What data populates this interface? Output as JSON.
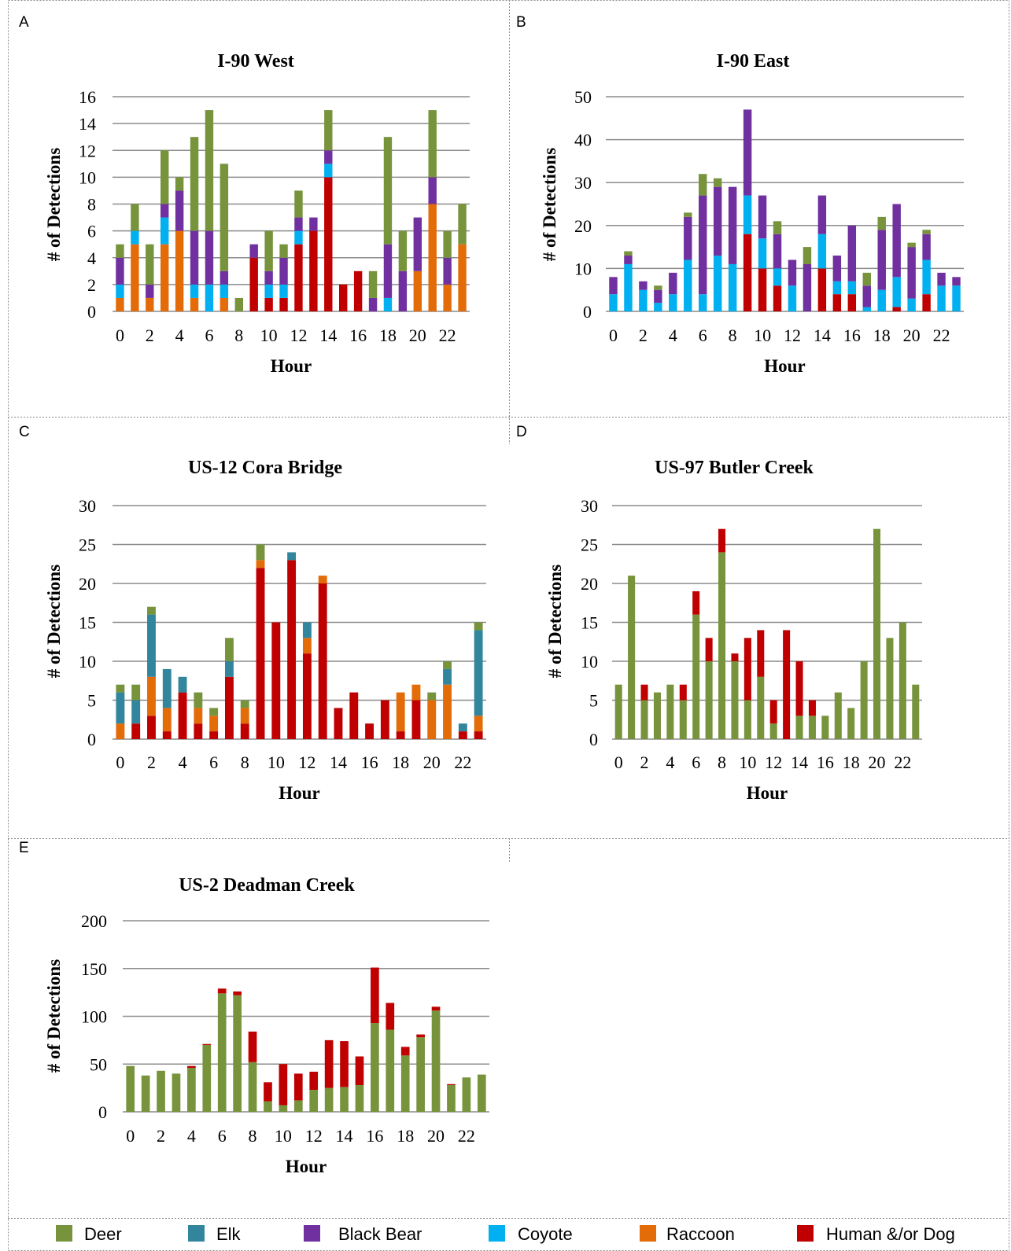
{
  "series_colors": {
    "Deer": "#77933C",
    "Elk": "#31859C",
    "Black Bear": "#7030A0",
    "Coyote": "#00B0F0",
    "Raccoon": "#E36C09",
    "Human &/or Dog": "#C00000"
  },
  "legend": {
    "items": [
      {
        "label": "Deer",
        "color": "#77933C"
      },
      {
        "label": "Elk",
        "color": "#31859C"
      },
      {
        "label": "Black Bear",
        "color": "#7030A0"
      },
      {
        "label": "Coyote",
        "color": "#00B0F0"
      },
      {
        "label": "Raccoon",
        "color": "#E36C09"
      },
      {
        "label": "Human &/or Dog",
        "color": "#C00000"
      }
    ]
  },
  "chart_data": [
    {
      "panel": "A",
      "type": "bar",
      "stacked": true,
      "title": "I-90 West",
      "xlabel": "Hour",
      "ylabel": "# of Detections",
      "ylim": [
        0,
        16
      ],
      "yticks": [
        0,
        2,
        4,
        6,
        8,
        10,
        12,
        14,
        16
      ],
      "xticks": [
        0,
        2,
        4,
        6,
        8,
        10,
        12,
        14,
        16,
        18,
        20,
        22
      ],
      "grid": true,
      "categories": [
        0,
        1,
        2,
        3,
        4,
        5,
        6,
        7,
        8,
        9,
        10,
        11,
        12,
        13,
        14,
        15,
        16,
        17,
        18,
        19,
        20,
        21,
        22,
        23
      ],
      "series": [
        {
          "name": "Human &/or Dog",
          "values": [
            0,
            0,
            0,
            0,
            0,
            0,
            0,
            0,
            0,
            4,
            1,
            1,
            5,
            6,
            10,
            2,
            3,
            0,
            0,
            0,
            0,
            0,
            0,
            0
          ]
        },
        {
          "name": "Raccoon",
          "values": [
            1,
            5,
            1,
            5,
            6,
            1,
            0,
            1,
            0,
            0,
            0,
            0,
            0,
            0,
            0,
            0,
            0,
            0,
            0,
            0,
            3,
            8,
            2,
            5
          ]
        },
        {
          "name": "Coyote",
          "values": [
            1,
            1,
            0,
            2,
            0,
            1,
            2,
            1,
            0,
            0,
            1,
            1,
            1,
            0,
            1,
            0,
            0,
            0,
            1,
            0,
            0,
            0,
            0,
            0
          ]
        },
        {
          "name": "Black Bear",
          "values": [
            2,
            0,
            1,
            1,
            3,
            4,
            4,
            1,
            0,
            1,
            1,
            2,
            1,
            1,
            1,
            0,
            0,
            1,
            4,
            3,
            4,
            2,
            2,
            0
          ]
        },
        {
          "name": "Deer",
          "values": [
            1,
            2,
            3,
            4,
            1,
            7,
            9,
            8,
            1,
            0,
            3,
            1,
            2,
            0,
            3,
            0,
            0,
            2,
            8,
            3,
            0,
            5,
            2,
            3
          ]
        }
      ]
    },
    {
      "panel": "B",
      "type": "bar",
      "stacked": true,
      "title": "I-90 East",
      "xlabel": "Hour",
      "ylabel": "# of Detections",
      "ylim": [
        0,
        50
      ],
      "yticks": [
        0,
        10,
        20,
        30,
        40,
        50
      ],
      "xticks": [
        0,
        2,
        4,
        6,
        8,
        10,
        12,
        14,
        16,
        18,
        20,
        22
      ],
      "grid": true,
      "categories": [
        0,
        1,
        2,
        3,
        4,
        5,
        6,
        7,
        8,
        9,
        10,
        11,
        12,
        13,
        14,
        15,
        16,
        17,
        18,
        19,
        20,
        21,
        22,
        23
      ],
      "series": [
        {
          "name": "Human &/or Dog",
          "values": [
            0,
            0,
            0,
            0,
            0,
            0,
            0,
            0,
            0,
            18,
            10,
            6,
            0,
            0,
            10,
            4,
            4,
            0,
            0,
            1,
            0,
            4,
            0,
            0
          ]
        },
        {
          "name": "Coyote",
          "values": [
            4,
            11,
            5,
            2,
            4,
            12,
            4,
            13,
            11,
            9,
            7,
            4,
            6,
            0,
            8,
            3,
            3,
            1,
            5,
            7,
            3,
            8,
            6,
            6
          ]
        },
        {
          "name": "Black Bear",
          "values": [
            4,
            2,
            2,
            3,
            5,
            10,
            23,
            16,
            18,
            20,
            10,
            8,
            6,
            11,
            9,
            6,
            13,
            5,
            14,
            17,
            12,
            6,
            3,
            2
          ]
        },
        {
          "name": "Deer",
          "values": [
            0,
            1,
            0,
            1,
            0,
            1,
            5,
            2,
            0,
            0,
            0,
            3,
            0,
            4,
            0,
            0,
            0,
            3,
            3,
            0,
            1,
            1,
            0,
            0
          ]
        }
      ]
    },
    {
      "panel": "C",
      "type": "bar",
      "stacked": true,
      "title": "US-12 Cora Bridge",
      "xlabel": "Hour",
      "ylabel": "# of Detections",
      "ylim": [
        0,
        30
      ],
      "yticks": [
        0,
        5,
        10,
        15,
        20,
        25,
        30
      ],
      "xticks": [
        0,
        2,
        4,
        6,
        8,
        10,
        12,
        14,
        16,
        18,
        20,
        22
      ],
      "grid": true,
      "categories": [
        0,
        1,
        2,
        3,
        4,
        5,
        6,
        7,
        8,
        9,
        10,
        11,
        12,
        13,
        14,
        15,
        16,
        17,
        18,
        19,
        20,
        21,
        22,
        23
      ],
      "series": [
        {
          "name": "Human &/or Dog",
          "values": [
            0,
            2,
            3,
            1,
            6,
            2,
            1,
            8,
            2,
            22,
            15,
            23,
            11,
            20,
            4,
            6,
            2,
            5,
            1,
            5,
            0,
            0,
            1,
            1
          ]
        },
        {
          "name": "Raccoon",
          "values": [
            2,
            0,
            5,
            3,
            0,
            2,
            2,
            0,
            2,
            1,
            0,
            0,
            2,
            1,
            0,
            0,
            0,
            0,
            5,
            2,
            5,
            7,
            0,
            2
          ]
        },
        {
          "name": "Elk",
          "values": [
            4,
            3,
            8,
            5,
            2,
            0,
            0,
            2,
            0,
            0,
            0,
            1,
            2,
            0,
            0,
            0,
            0,
            0,
            0,
            0,
            0,
            2,
            1,
            11
          ]
        },
        {
          "name": "Deer",
          "values": [
            1,
            2,
            1,
            0,
            0,
            2,
            1,
            3,
            1,
            2,
            0,
            0,
            0,
            0,
            0,
            0,
            0,
            0,
            0,
            0,
            1,
            1,
            0,
            1
          ]
        }
      ]
    },
    {
      "panel": "D",
      "type": "bar",
      "stacked": true,
      "title": "US-97 Butler Creek",
      "xlabel": "Hour",
      "ylabel": "# of Detections",
      "ylim": [
        0,
        30
      ],
      "yticks": [
        0,
        5,
        10,
        15,
        20,
        25,
        30
      ],
      "xticks": [
        0,
        2,
        4,
        6,
        8,
        10,
        12,
        14,
        16,
        18,
        20,
        22
      ],
      "grid": true,
      "categories": [
        0,
        1,
        2,
        3,
        4,
        5,
        6,
        7,
        8,
        9,
        10,
        11,
        12,
        13,
        14,
        15,
        16,
        17,
        18,
        19,
        20,
        21,
        22,
        23
      ],
      "series": [
        {
          "name": "Deer",
          "values": [
            7,
            21,
            5,
            6,
            7,
            5,
            16,
            10,
            24,
            10,
            5,
            8,
            2,
            0,
            3,
            3,
            3,
            6,
            4,
            10,
            27,
            13,
            15,
            7
          ]
        },
        {
          "name": "Human &/or Dog",
          "values": [
            0,
            0,
            2,
            0,
            0,
            2,
            3,
            3,
            3,
            1,
            8,
            6,
            3,
            14,
            7,
            2,
            0,
            0,
            0,
            0,
            0,
            0,
            0,
            0
          ]
        }
      ]
    },
    {
      "panel": "E",
      "type": "bar",
      "stacked": true,
      "title": "US-2 Deadman Creek",
      "xlabel": "Hour",
      "ylabel": "# of Detections",
      "ylim": [
        0,
        200
      ],
      "yticks": [
        0,
        50,
        100,
        150,
        200
      ],
      "xticks": [
        0,
        2,
        4,
        6,
        8,
        10,
        12,
        14,
        16,
        18,
        20,
        22
      ],
      "grid": true,
      "categories": [
        0,
        1,
        2,
        3,
        4,
        5,
        6,
        7,
        8,
        9,
        10,
        11,
        12,
        13,
        14,
        15,
        16,
        17,
        18,
        19,
        20,
        21,
        22,
        23
      ],
      "series": [
        {
          "name": "Deer",
          "values": [
            48,
            38,
            43,
            40,
            46,
            70,
            124,
            122,
            52,
            11,
            7,
            12,
            23,
            25,
            26,
            28,
            93,
            86,
            59,
            78,
            106,
            28,
            36,
            39
          ]
        },
        {
          "name": "Human &/or Dog",
          "values": [
            0,
            0,
            0,
            0,
            2,
            1,
            5,
            4,
            32,
            20,
            43,
            28,
            19,
            50,
            48,
            30,
            58,
            28,
            9,
            3,
            4,
            1,
            0,
            0
          ]
        }
      ]
    }
  ]
}
